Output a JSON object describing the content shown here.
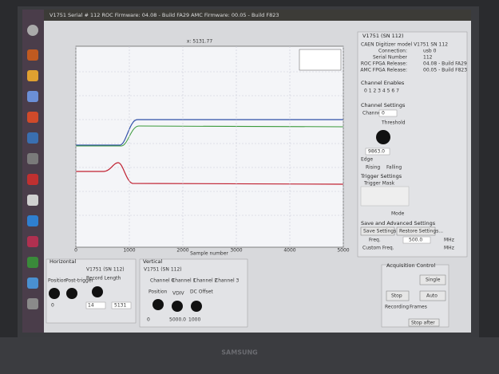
{
  "window_title": "V1751 Serial # 112 ROC Firmware: 04.08 - Build FA29 AMC Firmware: 00.05 - Build F823",
  "plot": {
    "cursor_label": "x: 5131.77",
    "x_label": "Sample number",
    "xlim": [
      0,
      5000
    ],
    "xticks": [
      0,
      1000,
      2000,
      3000,
      4000,
      5000
    ]
  },
  "right_panel": {
    "tab": "V1751 (SN 112)",
    "model": "CAEN Digitizer model V1751 SN 112",
    "info": [
      [
        "Connection:",
        "usb 0"
      ],
      [
        "Serial Number",
        "112"
      ],
      [
        "ROC FPGA Release:",
        "04.08 - Build FA29"
      ],
      [
        "AMC FPGA Release:",
        "00.05 - Build F823"
      ]
    ],
    "channel_enables": "Channel Enables",
    "channel_numbers": "0 1 2 3 4 5 6 7",
    "channel_settings": "Channel Settings",
    "channel": "Channel",
    "channel_value": "0",
    "threshold": "Threshold",
    "threshold_value": "9863.0",
    "edge": "Edge",
    "rising": "Rising",
    "falling": "Falling",
    "trigger_settings": "Trigger Settings",
    "trigger_mask": "Trigger Mask",
    "mode": "Mode",
    "save_header": "Save and Advanced Settings",
    "save_button": "Save Settings...",
    "restore_button": "Restore Settings...",
    "freq": "Freq.",
    "freq_value": "500.0",
    "mhz": "MHz",
    "custom_freq": "Custom Freq."
  },
  "horizontal": {
    "header": "Horizontal",
    "tab": "V1751 (SN 112)",
    "position": "Position",
    "post_trigger": "Post-trigger",
    "record_length": "Record Length",
    "position_value": "0",
    "post_trigger_value": "14",
    "record_length_value": "5131"
  },
  "vertical": {
    "header": "Vertical",
    "tab": "V1751 (SN 112)",
    "channels": [
      "Channel 0",
      "Channel 1",
      "Channel 2",
      "Channel 3"
    ],
    "position": "Position",
    "vdiv": "VDIV",
    "dc_offset": "DC Offset",
    "position_value": "0",
    "vdiv_value": "5000.0",
    "dc_offset_value": "1000"
  },
  "acquisition": {
    "header": "Acquisition Control",
    "single": "Single",
    "stop": "Stop",
    "auto": "Auto",
    "recording": "Recording",
    "frames": "Frames",
    "stop_after": "Stop after"
  },
  "bezel_brand": "SAMSUNG"
}
